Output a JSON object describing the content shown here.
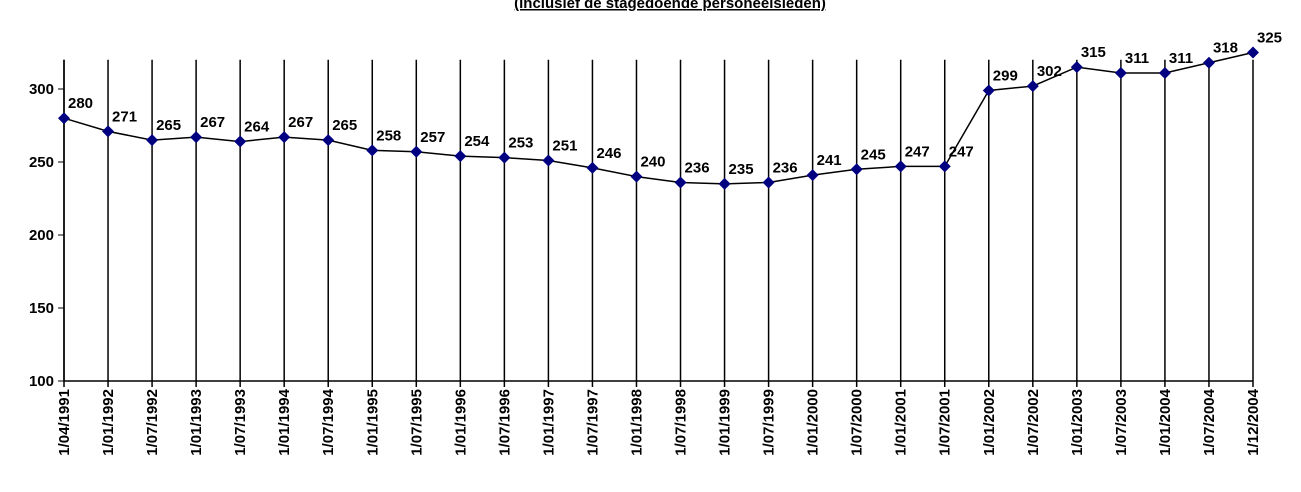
{
  "chart_data": {
    "type": "line",
    "title": "(inclusief de stagedoende personeelsleden)",
    "categories": [
      "1/04/1991",
      "1/01/1992",
      "1/07/1992",
      "1/01/1993",
      "1/07/1993",
      "1/01/1994",
      "1/07/1994",
      "1/01/1995",
      "1/07/1995",
      "1/01/1996",
      "1/07/1996",
      "1/01/1997",
      "1/07/1997",
      "1/01/1998",
      "1/07/1998",
      "1/01/1999",
      "1/07/1999",
      "1/01/2000",
      "1/07/2000",
      "1/01/2001",
      "1/07/2001",
      "1/01/2002",
      "1/07/2002",
      "1/01/2003",
      "1/07/2003",
      "1/01/2004",
      "1/07/2004",
      "1/12/2004"
    ],
    "values": [
      280,
      271,
      265,
      267,
      264,
      267,
      265,
      258,
      257,
      254,
      253,
      251,
      246,
      240,
      236,
      235,
      236,
      241,
      245,
      247,
      247,
      299,
      302,
      315,
      311,
      311,
      318,
      325
    ],
    "color": "#000080",
    "ylim": [
      100,
      320
    ],
    "yticks": [
      100,
      150,
      200,
      250,
      300
    ],
    "grid": true
  }
}
